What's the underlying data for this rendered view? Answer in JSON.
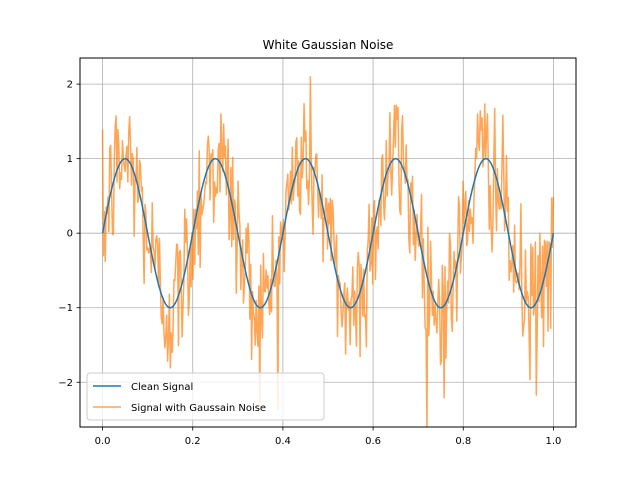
{
  "chart_data": {
    "type": "line",
    "title": "White Gaussian Noise",
    "xlabel": "",
    "ylabel": "",
    "xlim": [
      -0.05,
      1.05
    ],
    "ylim": [
      -2.6,
      2.35
    ],
    "xticks": [
      0.0,
      0.2,
      0.4,
      0.6,
      0.8,
      1.0
    ],
    "xtick_labels": [
      "0.0",
      "0.2",
      "0.4",
      "0.6",
      "0.8",
      "1.0"
    ],
    "yticks": [
      -2,
      -1,
      0,
      1,
      2
    ],
    "ytick_labels": [
      "−2",
      "−1",
      "0",
      "1",
      "2"
    ],
    "grid": true,
    "legend_position": "lower-left",
    "series": [
      {
        "name": "Clean Signal",
        "color": "#1f77b4",
        "function": "sin(2*pi*5*x)",
        "x_range": [
          0,
          1
        ],
        "n_points": 500
      },
      {
        "name": "Signal with Gaussain Noise",
        "color": "#ff7f0e",
        "opacity": 0.7,
        "function": "sin(2*pi*5*x) + gaussian_noise",
        "noise_std": 0.5,
        "x_range": [
          0,
          1
        ],
        "n_points": 500
      }
    ]
  }
}
